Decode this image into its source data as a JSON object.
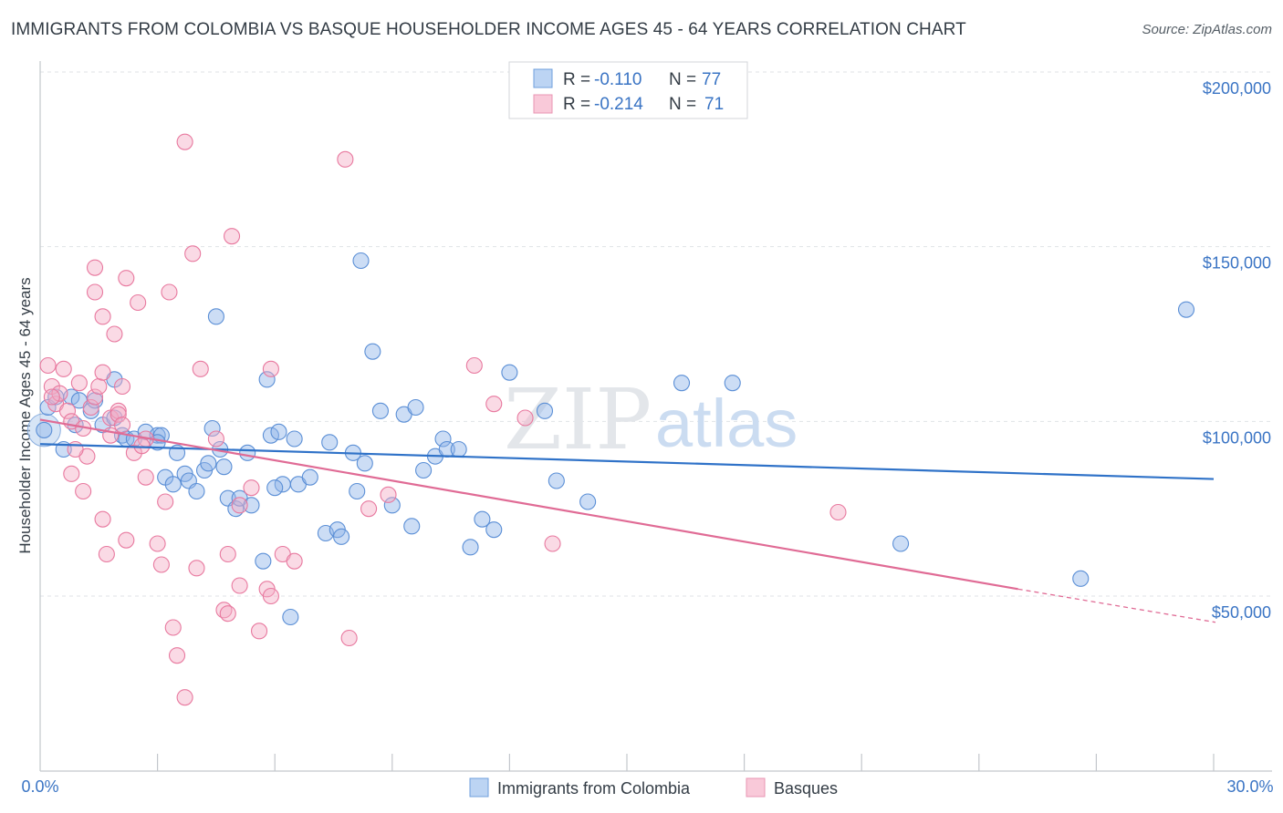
{
  "chart_data": {
    "type": "scatter",
    "title": "IMMIGRANTS FROM COLOMBIA VS BASQUE HOUSEHOLDER INCOME AGES 45 - 64 YEARS CORRELATION CHART",
    "source": "Source: ZipAtlas.com",
    "ylabel": "Householder Income Ages 45 - 64 years",
    "xlim": [
      0,
      30
    ],
    "ylim": [
      0,
      210000
    ],
    "x_tick_labels": {
      "left": "0.0%",
      "right": "30.0%"
    },
    "y_ticks": [
      {
        "value": 50000,
        "label": "$50,000"
      },
      {
        "value": 100000,
        "label": "$100,000"
      },
      {
        "value": 150000,
        "label": "$150,000"
      },
      {
        "value": 200000,
        "label": "$200,000"
      }
    ],
    "watermark": {
      "zip": "ZIP",
      "atlas": "atlas"
    },
    "legend": [
      {
        "r_label": "R =",
        "r_value": "-0.110",
        "n_label": "N =",
        "n_value": "77"
      },
      {
        "r_label": "R =",
        "r_value": "-0.214",
        "n_label": "N =",
        "n_value": "71"
      }
    ],
    "series": [
      {
        "name": "Immigrants from Colombia",
        "color": "#8db4e8",
        "stroke": "#5b8fd6",
        "line_color": "#2f72c8",
        "trend": {
          "x0": 0,
          "y0": 93500,
          "x1": 30,
          "y1": 83500
        },
        "points": [
          [
            0.1,
            97500
          ],
          [
            0.2,
            104000
          ],
          [
            0.4,
            107000
          ],
          [
            0.8,
            107000
          ],
          [
            1.0,
            106000
          ],
          [
            0.9,
            99000
          ],
          [
            0.6,
            92000
          ],
          [
            1.3,
            103000
          ],
          [
            1.4,
            106000
          ],
          [
            1.6,
            99000
          ],
          [
            1.9,
            101000
          ],
          [
            2.1,
            96000
          ],
          [
            2.2,
            95000
          ],
          [
            2.4,
            95000
          ],
          [
            2.7,
            97000
          ],
          [
            3.0,
            96000
          ],
          [
            3.1,
            96000
          ],
          [
            3.2,
            84000
          ],
          [
            1.9,
            112000
          ],
          [
            3.4,
            82000
          ],
          [
            3.5,
            91000
          ],
          [
            3.7,
            85000
          ],
          [
            3.8,
            83000
          ],
          [
            4.0,
            80000
          ],
          [
            4.2,
            86000
          ],
          [
            4.4,
            98000
          ],
          [
            4.5,
            130000
          ],
          [
            4.6,
            92000
          ],
          [
            4.7,
            87000
          ],
          [
            4.8,
            78000
          ],
          [
            5.0,
            75000
          ],
          [
            5.1,
            78000
          ],
          [
            5.3,
            91000
          ],
          [
            5.4,
            76000
          ],
          [
            5.7,
            60000
          ],
          [
            5.8,
            112000
          ],
          [
            5.9,
            96000
          ],
          [
            6.1,
            97000
          ],
          [
            6.2,
            82000
          ],
          [
            6.5,
            95000
          ],
          [
            6.6,
            82000
          ],
          [
            6.9,
            84000
          ],
          [
            6.4,
            44000
          ],
          [
            7.3,
            68000
          ],
          [
            7.4,
            94000
          ],
          [
            7.6,
            69000
          ],
          [
            7.7,
            67000
          ],
          [
            8.0,
            91000
          ],
          [
            8.1,
            80000
          ],
          [
            8.3,
            88000
          ],
          [
            8.2,
            146000
          ],
          [
            8.5,
            120000
          ],
          [
            8.7,
            103000
          ],
          [
            9.0,
            76000
          ],
          [
            9.3,
            102000
          ],
          [
            9.5,
            70000
          ],
          [
            9.6,
            104000
          ],
          [
            9.8,
            86000
          ],
          [
            10.1,
            90000
          ],
          [
            10.3,
            95000
          ],
          [
            10.4,
            92000
          ],
          [
            10.7,
            92000
          ],
          [
            11.0,
            64000
          ],
          [
            11.3,
            72000
          ],
          [
            11.6,
            69000
          ],
          [
            12.0,
            114000
          ],
          [
            12.9,
            103000
          ],
          [
            13.2,
            83000
          ],
          [
            14.0,
            77000
          ],
          [
            16.4,
            111000
          ],
          [
            17.7,
            111000
          ],
          [
            22.0,
            65000
          ],
          [
            26.6,
            55000
          ],
          [
            29.3,
            132000
          ],
          [
            3.0,
            94000
          ],
          [
            4.3,
            88000
          ],
          [
            6.0,
            81000
          ]
        ]
      },
      {
        "name": "Basques",
        "color": "#f5adc6",
        "stroke": "#e8799f",
        "line_color": "#e06b95",
        "trend": {
          "x0": 0,
          "y0": 100500,
          "x1": 25.0,
          "y1": 52000
        },
        "trend_dashed": {
          "x0": 25.0,
          "y0": 52000,
          "x1": 30,
          "y1": 42500
        },
        "points": [
          [
            0.2,
            116000
          ],
          [
            0.3,
            110000
          ],
          [
            0.4,
            105000
          ],
          [
            0.5,
            108000
          ],
          [
            0.6,
            115000
          ],
          [
            0.7,
            103000
          ],
          [
            0.8,
            100000
          ],
          [
            0.8,
            85000
          ],
          [
            1.0,
            111000
          ],
          [
            1.1,
            98000
          ],
          [
            1.1,
            80000
          ],
          [
            1.2,
            90000
          ],
          [
            1.3,
            104000
          ],
          [
            1.4,
            107000
          ],
          [
            1.4,
            137000
          ],
          [
            1.5,
            110000
          ],
          [
            1.6,
            130000
          ],
          [
            1.6,
            114000
          ],
          [
            1.6,
            72000
          ],
          [
            1.8,
            101000
          ],
          [
            1.9,
            125000
          ],
          [
            1.8,
            96000
          ],
          [
            2.0,
            103000
          ],
          [
            2.0,
            102000
          ],
          [
            2.1,
            99000
          ],
          [
            2.2,
            141000
          ],
          [
            2.2,
            66000
          ],
          [
            2.4,
            91000
          ],
          [
            2.5,
            134000
          ],
          [
            2.7,
            95000
          ],
          [
            2.7,
            84000
          ],
          [
            3.0,
            65000
          ],
          [
            3.1,
            59000
          ],
          [
            3.2,
            77000
          ],
          [
            3.3,
            137000
          ],
          [
            3.4,
            41000
          ],
          [
            3.5,
            33000
          ],
          [
            3.7,
            21000
          ],
          [
            3.7,
            180000
          ],
          [
            3.9,
            148000
          ],
          [
            4.0,
            58000
          ],
          [
            4.1,
            115000
          ],
          [
            4.5,
            95000
          ],
          [
            4.7,
            46000
          ],
          [
            4.8,
            45000
          ],
          [
            4.8,
            62000
          ],
          [
            4.9,
            153000
          ],
          [
            5.1,
            53000
          ],
          [
            5.1,
            76000
          ],
          [
            5.4,
            81000
          ],
          [
            5.6,
            40000
          ],
          [
            5.8,
            52000
          ],
          [
            5.9,
            50000
          ],
          [
            5.9,
            115000
          ],
          [
            6.2,
            62000
          ],
          [
            6.5,
            60000
          ],
          [
            7.8,
            175000
          ],
          [
            7.9,
            38000
          ],
          [
            8.4,
            75000
          ],
          [
            8.9,
            79000
          ],
          [
            11.1,
            116000
          ],
          [
            11.6,
            105000
          ],
          [
            12.4,
            101000
          ],
          [
            13.1,
            65000
          ],
          [
            20.4,
            74000
          ],
          [
            1.4,
            144000
          ],
          [
            2.6,
            93000
          ],
          [
            0.9,
            92000
          ],
          [
            2.1,
            110000
          ],
          [
            1.7,
            62000
          ],
          [
            0.3,
            107000
          ]
        ]
      }
    ]
  }
}
